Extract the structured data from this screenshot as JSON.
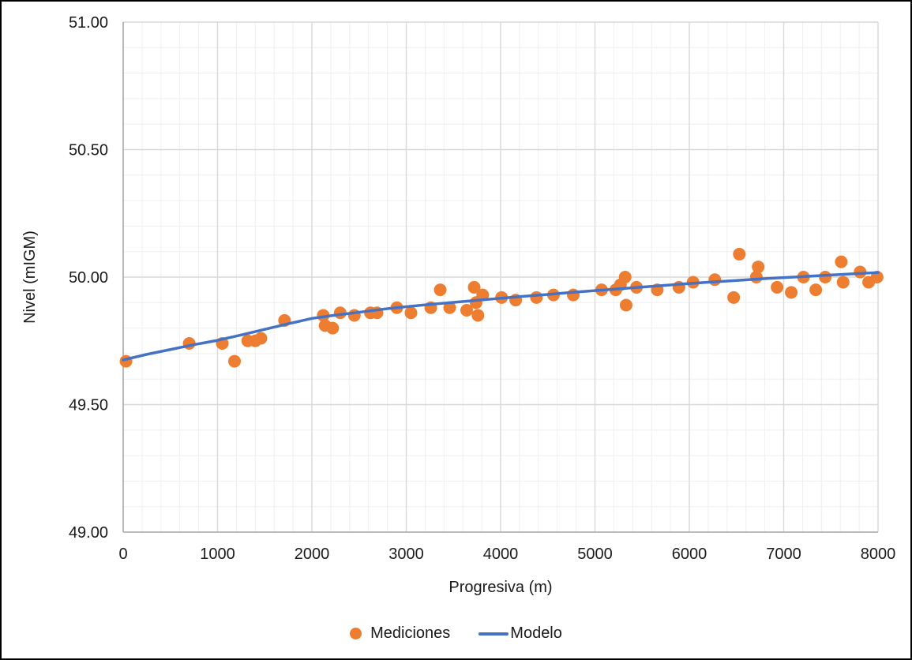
{
  "figure": {
    "background_color": "#FFFFFF",
    "border_color": "#000000"
  },
  "chart_data": {
    "type": "scatter",
    "title": "",
    "xlabel": "Progresiva (m)",
    "ylabel": "Nivel (mIGM)",
    "xlim": [
      0,
      8000
    ],
    "ylim": [
      49.0,
      51.0
    ],
    "x_ticks": [
      0,
      1000,
      2000,
      3000,
      4000,
      5000,
      6000,
      7000,
      8000
    ],
    "x_tick_labels": [
      "0",
      "1000",
      "2000",
      "3000",
      "4000",
      "5000",
      "6000",
      "7000",
      "8000"
    ],
    "y_ticks": [
      49.0,
      49.5,
      50.0,
      50.5,
      51.0
    ],
    "y_tick_labels": [
      "49.00",
      "49.50",
      "50.00",
      "50.50",
      "51.00"
    ],
    "x_minor_step": 200,
    "y_minor_step": 0.1,
    "grid": {
      "major_color": "#D9D9D9",
      "minor_color": "#EFEFEF",
      "axis_line_color": "#ABABAB",
      "show_major": true,
      "show_minor": true
    },
    "legend": {
      "position": "bottom",
      "entries": [
        {
          "label": "Mediciones",
          "marker": "circle",
          "color": "#ED7D31"
        },
        {
          "label": "Modelo",
          "marker": "line",
          "color": "#4472C4"
        }
      ]
    },
    "series": [
      {
        "name": "Mediciones",
        "type": "scatter",
        "color": "#ED7D31",
        "marker_radius": 8,
        "points": [
          [
            30,
            49.67
          ],
          [
            700,
            49.74
          ],
          [
            1050,
            49.74
          ],
          [
            1180,
            49.67
          ],
          [
            1320,
            49.75
          ],
          [
            1400,
            49.75
          ],
          [
            1460,
            49.76
          ],
          [
            1710,
            49.83
          ],
          [
            2120,
            49.85
          ],
          [
            2140,
            49.81
          ],
          [
            2220,
            49.8
          ],
          [
            2300,
            49.86
          ],
          [
            2450,
            49.85
          ],
          [
            2620,
            49.86
          ],
          [
            2690,
            49.86
          ],
          [
            2900,
            49.88
          ],
          [
            3050,
            49.86
          ],
          [
            3260,
            49.88
          ],
          [
            3360,
            49.95
          ],
          [
            3460,
            49.88
          ],
          [
            3640,
            49.87
          ],
          [
            3720,
            49.96
          ],
          [
            3740,
            49.9
          ],
          [
            3760,
            49.85
          ],
          [
            3810,
            49.93
          ],
          [
            4010,
            49.92
          ],
          [
            4160,
            49.91
          ],
          [
            4380,
            49.92
          ],
          [
            4560,
            49.93
          ],
          [
            4770,
            49.93
          ],
          [
            5070,
            49.95
          ],
          [
            5220,
            49.95
          ],
          [
            5270,
            49.97
          ],
          [
            5320,
            50.0
          ],
          [
            5330,
            49.89
          ],
          [
            5440,
            49.96
          ],
          [
            5660,
            49.95
          ],
          [
            5890,
            49.96
          ],
          [
            6040,
            49.98
          ],
          [
            6270,
            49.99
          ],
          [
            6470,
            49.92
          ],
          [
            6530,
            50.09
          ],
          [
            6710,
            50.0
          ],
          [
            6730,
            50.04
          ],
          [
            6930,
            49.96
          ],
          [
            7080,
            49.94
          ],
          [
            7210,
            50.0
          ],
          [
            7340,
            49.95
          ],
          [
            7440,
            50.0
          ],
          [
            7610,
            50.06
          ],
          [
            7630,
            49.98
          ],
          [
            7810,
            50.02
          ],
          [
            7900,
            49.98
          ],
          [
            7990,
            50.0
          ]
        ]
      },
      {
        "name": "Modelo",
        "type": "line",
        "color": "#4472C4",
        "line_width": 3.5,
        "points": [
          [
            0,
            49.675
          ],
          [
            250,
            49.697
          ],
          [
            500,
            49.716
          ],
          [
            750,
            49.735
          ],
          [
            1000,
            49.752
          ],
          [
            1250,
            49.773
          ],
          [
            1500,
            49.795
          ],
          [
            1750,
            49.817
          ],
          [
            2000,
            49.838
          ],
          [
            2250,
            49.851
          ],
          [
            2500,
            49.862
          ],
          [
            2750,
            49.874
          ],
          [
            3000,
            49.884
          ],
          [
            3250,
            49.893
          ],
          [
            3500,
            49.901
          ],
          [
            3750,
            49.909
          ],
          [
            4000,
            49.917
          ],
          [
            4250,
            49.925
          ],
          [
            4500,
            49.932
          ],
          [
            4750,
            49.94
          ],
          [
            5000,
            49.947
          ],
          [
            5250,
            49.954
          ],
          [
            5500,
            49.961
          ],
          [
            5750,
            49.968
          ],
          [
            6000,
            49.975
          ],
          [
            6250,
            49.981
          ],
          [
            6500,
            49.987
          ],
          [
            6750,
            49.993
          ],
          [
            7000,
            49.998
          ],
          [
            7250,
            50.003
          ],
          [
            7500,
            50.008
          ],
          [
            7750,
            50.013
          ],
          [
            8000,
            50.018
          ]
        ]
      }
    ]
  }
}
